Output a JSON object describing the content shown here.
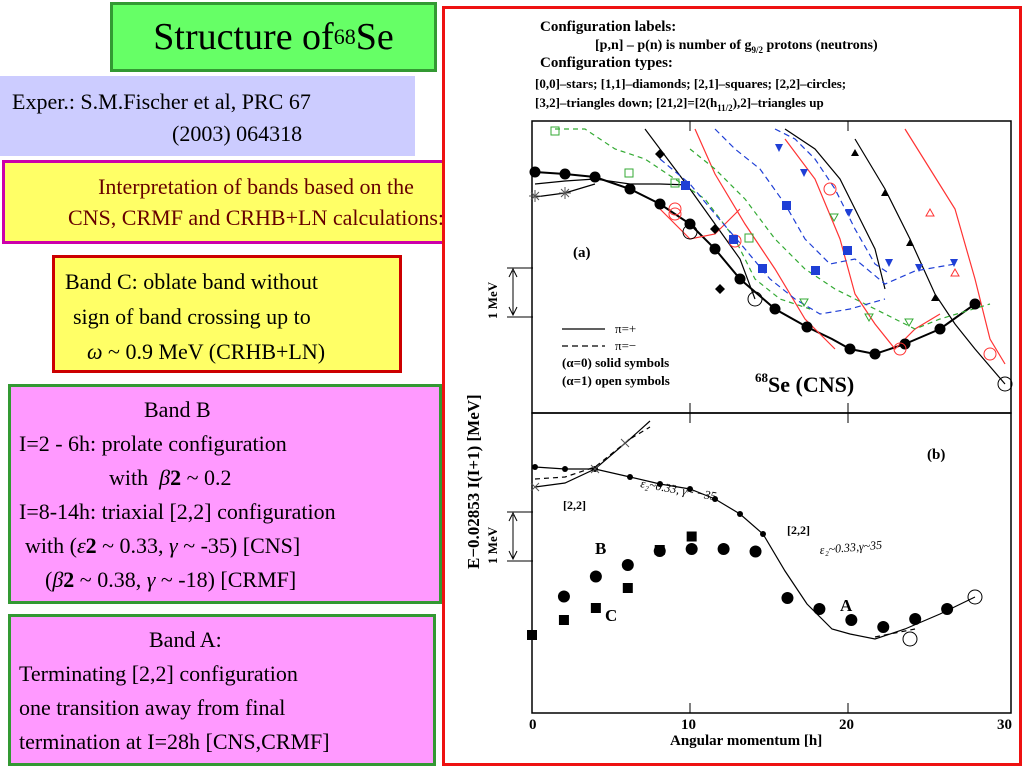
{
  "title": {
    "text": "Structure of ",
    "mass": "68",
    "element": "Se"
  },
  "reference": {
    "line1": "Exper.: S.M.Fischer et al, PRC 67",
    "line2": "(2003) 064318"
  },
  "interpretation": {
    "line1": "Interpretation of bands based on the",
    "line2": "CNS, CRMF and CRHB+LN calculations:"
  },
  "band_c": {
    "line1": "Band C: oblate band without",
    "line2": "sign of band crossing up to",
    "line3": "~ 0.9 MeV (CRHB+LN)"
  },
  "band_b": {
    "heading": "Band B",
    "line1": "I=2 - 6h:  prolate configuration",
    "line2_prefix": "with",
    "line2_value": "~ 0.2",
    "line3": "I=8-14h: triaxial [2,2] configuration",
    "line4_prefix": "with (",
    "line4_rest": "~ 0.33,",
    "line4_gamma": "~ -35) [CNS]",
    "line5_value": "~ 0.38,",
    "line5_gamma": "~ -18) [CRMF]"
  },
  "band_a": {
    "heading": "Band A:",
    "line1": "Terminating [2,2] configuration",
    "line2": "one transition away from final",
    "line3": "termination at I=28h [CNS,CRMF]"
  },
  "figure": {
    "legend_title1": "Configuration labels:",
    "legend_line1": "[p,n] – p(n) is number of g",
    "legend_sub": "9/2",
    "legend_line1b": " protons (neutrons)",
    "legend_title2": "Configuration types:",
    "types1": "[0,0]–stars;  [1,1]–diamonds; [2,1]–squares;  [2,2]–circles;",
    "types2": "[3,2]–triangles down;  [21,2]=[2(h",
    "types2b": "),2]–triangles up",
    "panel_a": "(a)",
    "panel_b": "(b)",
    "scale_a": "1 MeV",
    "scale_b": "1 MeV",
    "parity_plus": "π=+",
    "parity_minus": "π=−",
    "sig0": "(α=0)   solid symbols",
    "sig1": "(α=1)   open symbols",
    "cns_label_mass": "68",
    "cns_label": "Se (CNS)",
    "ylabel": "E−0.02853 I(I+1)  [MeV]",
    "xlabel": "Angular  momentum  [h]",
    "xticks": [
      "0",
      "10",
      "20",
      "30"
    ],
    "label_22_left": "[2,2]",
    "label_22_right": "[2,2]",
    "def_upper": "ε₂~0.33, γ~ −35",
    "def_lower": "ε₂~0.33,γ~35",
    "band_A": "A",
    "band_B": "B",
    "band_C": "C"
  },
  "chart_data": {
    "type": "scatter",
    "xlabel": "Angular  momentum  [h]",
    "ylabel": "E−0.02853 I(I+1)  [MeV]",
    "xlim": [
      0,
      30
    ],
    "panel_b_series": [
      {
        "name": "A",
        "x": [
          16,
          18,
          20,
          22,
          24,
          26
        ],
        "y": [
          0.62,
          0.4,
          0.18,
          0.04,
          0.2,
          0.4
        ]
      },
      {
        "name": "B",
        "x": [
          2,
          4,
          6,
          8,
          10,
          12,
          14
        ],
        "y": [
          0.65,
          1.05,
          1.28,
          1.56,
          1.6,
          1.6,
          1.55
        ]
      },
      {
        "name": "C",
        "x": [
          0,
          2,
          4,
          6,
          8,
          10
        ],
        "y": [
          -0.12,
          0.18,
          0.42,
          0.82,
          1.58,
          1.85
        ]
      }
    ]
  },
  "colors": {
    "title_bg": "#66ff66",
    "ref_bg": "#ccccff",
    "yellow": "#ffff66",
    "pink": "#ff99ff",
    "frame": "#ee1111"
  }
}
